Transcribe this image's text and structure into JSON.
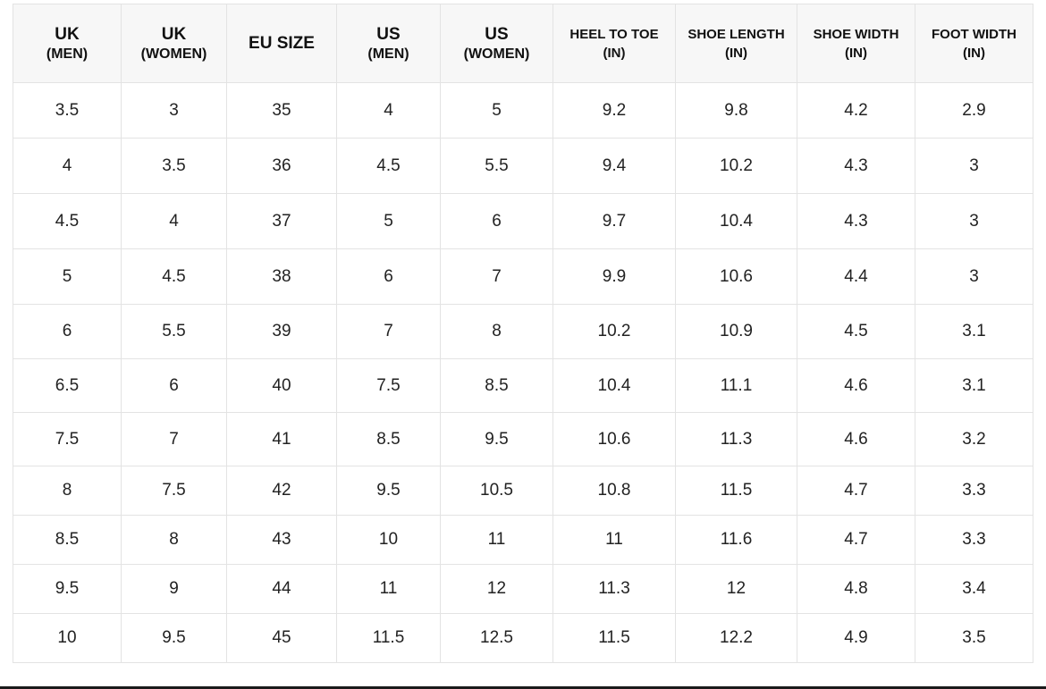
{
  "table": {
    "headers": [
      {
        "line1": "UK",
        "line2": "(MEN)",
        "style": "big"
      },
      {
        "line1": "UK",
        "line2": "(WOMEN)",
        "style": "big"
      },
      {
        "line1": "EU SIZE",
        "line2": "",
        "style": "big"
      },
      {
        "line1": "US",
        "line2": "(MEN)",
        "style": "big"
      },
      {
        "line1": "US",
        "line2": "(WOMEN)",
        "style": "big"
      },
      {
        "line1": "HEEL TO TOE",
        "line2": "(IN)",
        "style": "small"
      },
      {
        "line1": "SHOE LENGTH",
        "line2": "(IN)",
        "style": "small"
      },
      {
        "line1": "SHOE WIDTH",
        "line2": "(IN)",
        "style": "small"
      },
      {
        "line1": "FOOT WIDTH",
        "line2": "(IN)",
        "style": "small"
      }
    ],
    "rows": [
      [
        "3.5",
        "3",
        "35",
        "4",
        "5",
        "9.2",
        "9.8",
        "4.2",
        "2.9"
      ],
      [
        "4",
        "3.5",
        "36",
        "4.5",
        "5.5",
        "9.4",
        "10.2",
        "4.3",
        "3"
      ],
      [
        "4.5",
        "4",
        "37",
        "5",
        "6",
        "9.7",
        "10.4",
        "4.3",
        "3"
      ],
      [
        "5",
        "4.5",
        "38",
        "6",
        "7",
        "9.9",
        "10.6",
        "4.4",
        "3"
      ],
      [
        "6",
        "5.5",
        "39",
        "7",
        "8",
        "10.2",
        "10.9",
        "4.5",
        "3.1"
      ],
      [
        "6.5",
        "6",
        "40",
        "7.5",
        "8.5",
        "10.4",
        "11.1",
        "4.6",
        "3.1"
      ],
      [
        "7.5",
        "7",
        "41",
        "8.5",
        "9.5",
        "10.6",
        "11.3",
        "4.6",
        "3.2"
      ],
      [
        "8",
        "7.5",
        "42",
        "9.5",
        "10.5",
        "10.8",
        "11.5",
        "4.7",
        "3.3"
      ],
      [
        "8.5",
        "8",
        "43",
        "10",
        "11",
        "11",
        "11.6",
        "4.7",
        "3.3"
      ],
      [
        "9.5",
        "9",
        "44",
        "11",
        "12",
        "11.3",
        "12",
        "4.8",
        "3.4"
      ],
      [
        "10",
        "9.5",
        "45",
        "11.5",
        "12.5",
        "11.5",
        "12.2",
        "4.9",
        "3.5"
      ]
    ]
  }
}
